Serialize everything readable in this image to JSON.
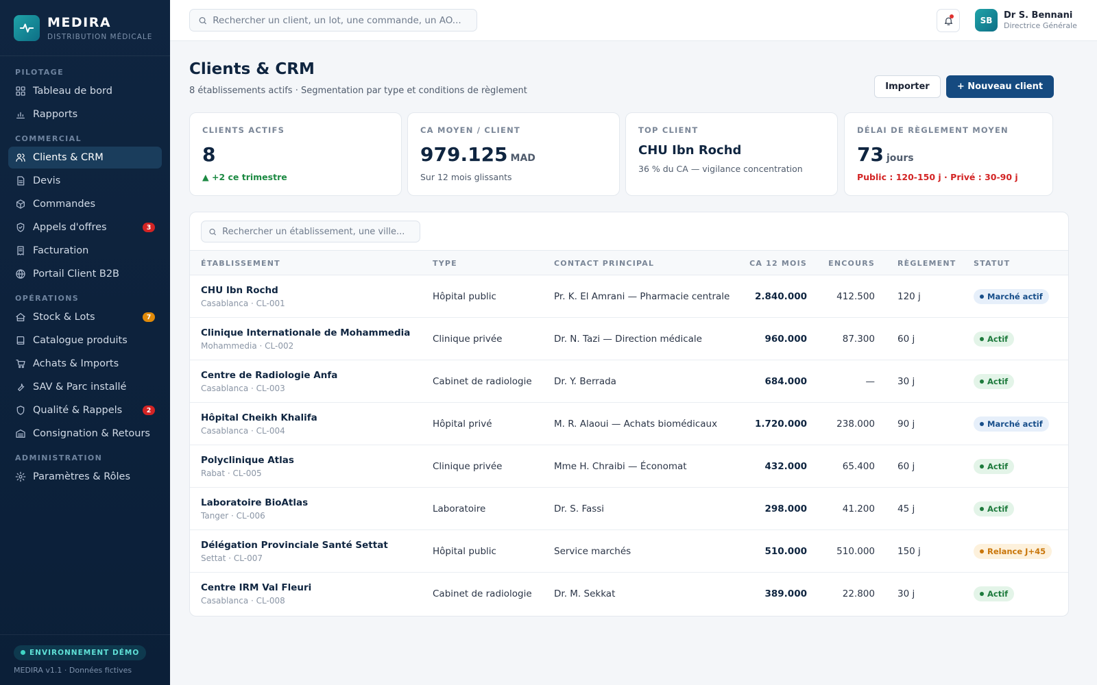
{
  "brand": {
    "name": "MEDIRA",
    "subtitle": "DISTRIBUTION MÉDICALE"
  },
  "sidebar": {
    "sections": [
      {
        "title": "PILOTAGE",
        "items": [
          {
            "label": "Tableau de bord",
            "icon": "grid-icon"
          },
          {
            "label": "Rapports",
            "icon": "bar-chart-icon"
          }
        ]
      },
      {
        "title": "COMMERCIAL",
        "items": [
          {
            "label": "Clients & CRM",
            "icon": "users-icon",
            "active": true
          },
          {
            "label": "Devis",
            "icon": "document-icon"
          },
          {
            "label": "Commandes",
            "icon": "box-icon"
          },
          {
            "label": "Appels d'offres",
            "icon": "shield-check-icon",
            "badge": "3",
            "badge_color": "#d32424"
          },
          {
            "label": "Facturation",
            "icon": "receipt-icon"
          },
          {
            "label": "Portail Client B2B",
            "icon": "globe-icon"
          }
        ]
      },
      {
        "title": "OPÉRATIONS",
        "items": [
          {
            "label": "Stock & Lots",
            "icon": "home-icon",
            "badge": "7",
            "badge_color": "#e08a0a"
          },
          {
            "label": "Catalogue produits",
            "icon": "book-icon"
          },
          {
            "label": "Achats & Imports",
            "icon": "cart-icon"
          },
          {
            "label": "SAV & Parc installé",
            "icon": "wrench-icon"
          },
          {
            "label": "Qualité & Rappels",
            "icon": "shield-icon",
            "badge": "2",
            "badge_color": "#d32424"
          },
          {
            "label": "Consignation & Retours",
            "icon": "warehouse-icon"
          }
        ]
      },
      {
        "title": "ADMINISTRATION",
        "items": [
          {
            "label": "Paramètres & Rôles",
            "icon": "gear-icon"
          }
        ]
      }
    ],
    "footer": {
      "env": "ENVIRONNEMENT DÉMO",
      "version": "MEDIRA v1.1 · Données fictives"
    }
  },
  "topbar": {
    "search_placeholder": "Rechercher un client, un lot, une commande, un AO...",
    "user": {
      "initials": "SB",
      "name": "Dr S. Bennani",
      "role": "Directrice Générale"
    }
  },
  "page": {
    "title": "Clients & CRM",
    "subtitle": "8 établissements actifs · Segmentation par type et conditions de règlement",
    "import_label": "Importer",
    "new_label": "+ Nouveau client"
  },
  "kpis": [
    {
      "label": "CLIENTS ACTIFS",
      "value": "8",
      "unit": "",
      "note": "▲ +2 ce trimestre",
      "note_style": "green"
    },
    {
      "label": "CA MOYEN / CLIENT",
      "value": "979.125",
      "unit": "MAD",
      "note": "Sur 12 mois glissants",
      "note_style": ""
    },
    {
      "label": "TOP CLIENT",
      "value": "CHU Ibn Rochd",
      "unit": "",
      "note": "36 % du CA — vigilance concentration",
      "note_style": "",
      "is_name": true
    },
    {
      "label": "DÉLAI DE RÈGLEMENT MOYEN",
      "value": "73",
      "unit": "jours",
      "note": "Public : 120-150 j · Privé : 30-90 j",
      "note_style": "red"
    }
  ],
  "table": {
    "search_placeholder": "Rechercher un établissement, une ville...",
    "headers": [
      "ÉTABLISSEMENT",
      "TYPE",
      "CONTACT PRINCIPAL",
      "CA 12 MOIS",
      "ENCOURS",
      "RÈGLEMENT",
      "STATUT"
    ],
    "rows": [
      {
        "name": "CHU Ibn Rochd",
        "sub": "Casablanca · CL-001",
        "type": "Hôpital public",
        "contact": "Pr. K. El Amrani — Pharmacie centrale",
        "ca": "2.840.000",
        "encours": "412.500",
        "reglement": "120 j",
        "status": "Marché actif",
        "status_kind": "blue"
      },
      {
        "name": "Clinique Internationale de Mohammedia",
        "sub": "Mohammedia · CL-002",
        "type": "Clinique privée",
        "contact": "Dr. N. Tazi — Direction médicale",
        "ca": "960.000",
        "encours": "87.300",
        "reglement": "60 j",
        "status": "Actif",
        "status_kind": "green"
      },
      {
        "name": "Centre de Radiologie Anfa",
        "sub": "Casablanca · CL-003",
        "type": "Cabinet de radiologie",
        "contact": "Dr. Y. Berrada",
        "ca": "684.000",
        "encours": "—",
        "reglement": "30 j",
        "status": "Actif",
        "status_kind": "green"
      },
      {
        "name": "Hôpital Cheikh Khalifa",
        "sub": "Casablanca · CL-004",
        "type": "Hôpital privé",
        "contact": "M. R. Alaoui — Achats biomédicaux",
        "ca": "1.720.000",
        "encours": "238.000",
        "reglement": "90 j",
        "status": "Marché actif",
        "status_kind": "blue"
      },
      {
        "name": "Polyclinique Atlas",
        "sub": "Rabat · CL-005",
        "type": "Clinique privée",
        "contact": "Mme H. Chraibi — Économat",
        "ca": "432.000",
        "encours": "65.400",
        "reglement": "60 j",
        "status": "Actif",
        "status_kind": "green"
      },
      {
        "name": "Laboratoire BioAtlas",
        "sub": "Tanger · CL-006",
        "type": "Laboratoire",
        "contact": "Dr. S. Fassi",
        "ca": "298.000",
        "encours": "41.200",
        "reglement": "45 j",
        "status": "Actif",
        "status_kind": "green"
      },
      {
        "name": "Délégation Provinciale Santé Settat",
        "sub": "Settat · CL-007",
        "type": "Hôpital public",
        "contact": "Service marchés",
        "ca": "510.000",
        "encours": "510.000",
        "reglement": "150 j",
        "status": "Relance J+45",
        "status_kind": "orange"
      },
      {
        "name": "Centre IRM Val Fleuri",
        "sub": "Casablanca · CL-008",
        "type": "Cabinet de radiologie",
        "contact": "Dr. M. Sekkat",
        "ca": "389.000",
        "encours": "22.800",
        "reglement": "30 j",
        "status": "Actif",
        "status_kind": "green"
      }
    ]
  },
  "colors": {
    "primary": "#154a80",
    "sidebar_bg": "#0f2540",
    "accent_teal": "#1fa3a8",
    "status_blue_bg": "#e6effa",
    "status_blue_fg": "#174e8a",
    "status_green_bg": "#e3f4e8",
    "status_green_fg": "#1d7a3c",
    "status_orange_bg": "#fdf1dc",
    "status_orange_fg": "#c9760a"
  }
}
